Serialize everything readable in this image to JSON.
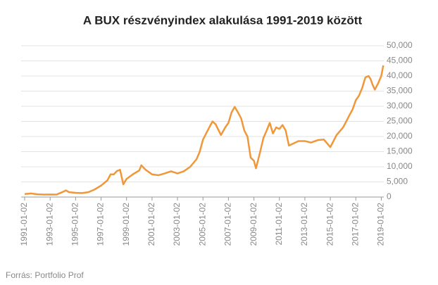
{
  "chart_data": {
    "type": "line",
    "title": "A BUX részvényindex alakulása 1991-2019 között",
    "source": "Forrás: Portfolio Prof",
    "x": [
      "1991-01-02",
      "1991-07-01",
      "1992-01-02",
      "1992-07-01",
      "1993-01-02",
      "1993-07-01",
      "1994-01-03",
      "1994-04-01",
      "1994-07-01",
      "1995-01-02",
      "1995-07-03",
      "1996-01-02",
      "1996-07-01",
      "1997-01-02",
      "1997-07-01",
      "1997-10-01",
      "1998-01-02",
      "1998-04-01",
      "1998-07-01",
      "1998-10-01",
      "1999-01-04",
      "1999-07-01",
      "2000-01-03",
      "2000-03-01",
      "2000-07-03",
      "2001-01-02",
      "2001-07-02",
      "2002-01-02",
      "2002-07-01",
      "2003-01-02",
      "2003-07-01",
      "2004-01-02",
      "2004-07-01",
      "2004-10-01",
      "2005-01-03",
      "2005-07-01",
      "2005-10-03",
      "2006-01-02",
      "2006-06-01",
      "2006-10-02",
      "2007-01-02",
      "2007-04-02",
      "2007-07-02",
      "2007-10-01",
      "2008-01-02",
      "2008-04-01",
      "2008-07-01",
      "2008-10-01",
      "2009-01-02",
      "2009-03-02",
      "2009-07-01",
      "2009-10-01",
      "2010-01-04",
      "2010-04-01",
      "2010-07-01",
      "2010-10-01",
      "2011-01-03",
      "2011-04-01",
      "2011-07-01",
      "2011-10-03",
      "2012-01-02",
      "2012-07-02",
      "2013-01-02",
      "2013-07-01",
      "2014-01-02",
      "2014-07-01",
      "2015-01-02",
      "2015-07-01",
      "2016-01-04",
      "2016-07-01",
      "2016-10-03",
      "2017-01-02",
      "2017-04-03",
      "2017-07-03",
      "2017-10-02",
      "2018-01-02",
      "2018-03-01",
      "2018-05-02",
      "2018-07-02",
      "2018-10-01",
      "2019-01-02",
      "2019-03-01"
    ],
    "values": [
      1000,
      1200,
      900,
      800,
      850,
      800,
      1700,
      2200,
      1600,
      1400,
      1300,
      1600,
      2500,
      3800,
      5500,
      7500,
      7500,
      8600,
      9000,
      4200,
      6000,
      7500,
      8800,
      10500,
      9000,
      7500,
      7200,
      7800,
      8500,
      7800,
      8500,
      10000,
      12500,
      15000,
      19000,
      23000,
      25000,
      24000,
      20500,
      23000,
      24500,
      28000,
      29800,
      28000,
      26000,
      22000,
      20000,
      13000,
      12000,
      9500,
      15000,
      19500,
      22000,
      24500,
      21000,
      23000,
      22500,
      23800,
      22000,
      17000,
      17500,
      18500,
      18500,
      18000,
      18800,
      19000,
      16500,
      20500,
      23000,
      27000,
      29000,
      32000,
      33500,
      36000,
      39500,
      40000,
      39000,
      37000,
      35500,
      37500,
      40000,
      43500
    ],
    "color": "#f0973a",
    "xlim": [
      "1991-01-02",
      "2019-03-15"
    ],
    "xticks": [
      "1991-01-02",
      "1993-01-02",
      "1995-01-02",
      "1997-01-02",
      "1999-01-02",
      "2001-01-02",
      "2003-01-02",
      "2005-01-02",
      "2007-01-02",
      "2009-01-02",
      "2011-01-02",
      "2013-01-02",
      "2015-01-02",
      "2017-01-02",
      "2019-01-02"
    ],
    "ylim": [
      0,
      50000
    ],
    "yticks": [
      0,
      {
        "value": 5000,
        "label": "5,000"
      },
      {
        "value": 10000,
        "label": "10,000"
      },
      {
        "value": 15000,
        "label": "15,000"
      },
      {
        "value": 20000,
        "label": "20,000"
      },
      {
        "value": 25000,
        "label": "25,000"
      },
      {
        "value": 30000,
        "label": "30,000"
      },
      {
        "value": 35000,
        "label": "35,000"
      },
      {
        "value": 40000,
        "label": "40,000"
      },
      {
        "value": 45000,
        "label": "45,000"
      },
      {
        "value": 50000,
        "label": "50,000"
      }
    ],
    "grid": true
  }
}
